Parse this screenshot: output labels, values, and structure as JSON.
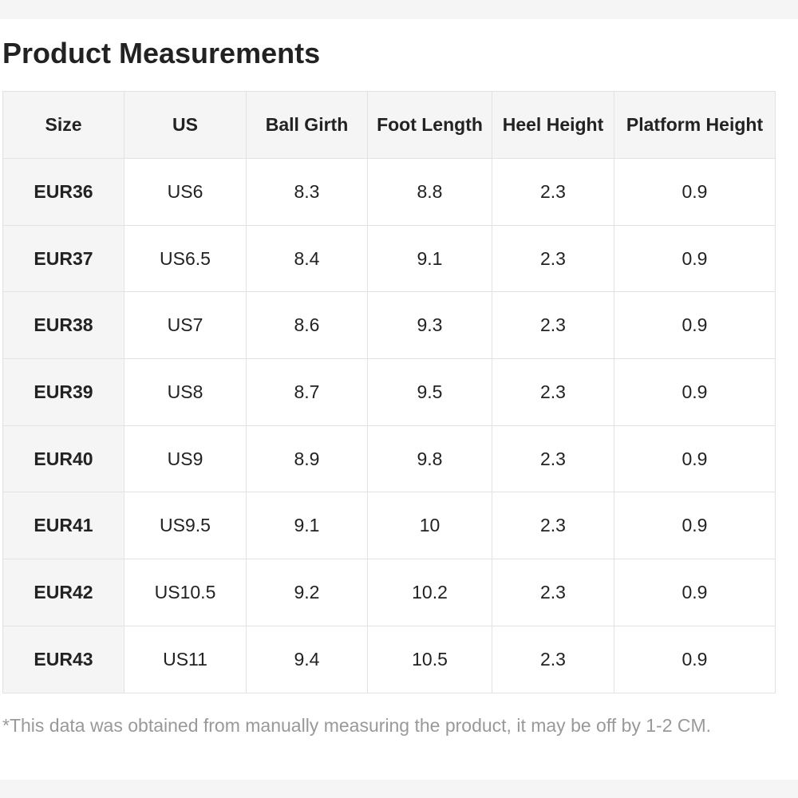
{
  "header": {
    "title": "Product Measurements"
  },
  "table": {
    "columns": [
      "Size",
      "US",
      "Ball Girth",
      "Foot Length",
      "Heel Height",
      "Platform Height"
    ],
    "rows": [
      [
        "EUR36",
        "US6",
        8.3,
        8.8,
        2.3,
        0.9
      ],
      [
        "EUR37",
        "US6.5",
        8.4,
        9.1,
        2.3,
        0.9
      ],
      [
        "EUR38",
        "US7",
        8.6,
        9.3,
        2.3,
        0.9
      ],
      [
        "EUR39",
        "US8",
        8.7,
        9.5,
        2.3,
        0.9
      ],
      [
        "EUR40",
        "US9",
        8.9,
        9.8,
        2.3,
        0.9
      ],
      [
        "EUR41",
        "US9.5",
        9.1,
        10,
        2.3,
        0.9
      ],
      [
        "EUR42",
        "US10.5",
        9.2,
        10.2,
        2.3,
        0.9
      ],
      [
        "EUR43",
        "US11",
        9.4,
        10.5,
        2.3,
        0.9
      ]
    ]
  },
  "note": "*This data was obtained from manually measuring the product, it may be off by 1-2 CM."
}
